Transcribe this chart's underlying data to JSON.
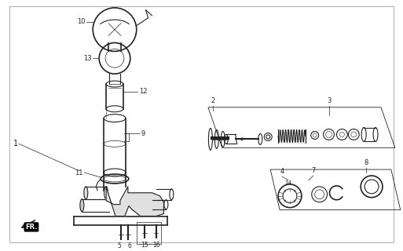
{
  "bg_color": "#ffffff",
  "line_color": "#222222",
  "fig_width": 5.13,
  "fig_height": 3.2,
  "dpi": 100
}
